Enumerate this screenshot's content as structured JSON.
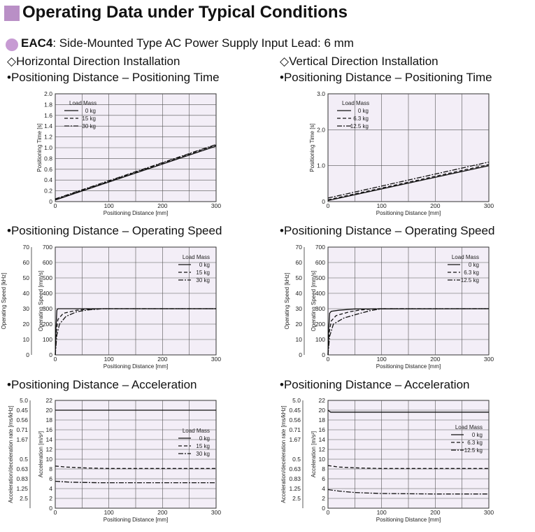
{
  "header": {
    "title": "Operating Data under Typical Conditions",
    "model": "EAC4",
    "subtitle": ": Side-Mounted Type  AC Power Supply Input  Lead: 6 mm"
  },
  "installations": {
    "left": "◇Horizontal Direction Installation",
    "right": "◇Vertical Direction Installation"
  },
  "colors": {
    "header_square": "#b98fc6",
    "bullet": "#c79bd3",
    "plot_bg": "#f3eef7"
  },
  "chart_data": [
    {
      "type": "line",
      "title": "•Positioning Distance – Positioning Time",
      "xlabel": "Positioning Distance [mm]",
      "ylabel": "Positioning Time [s]",
      "xlim": [
        0,
        300
      ],
      "ylim": [
        0,
        2.0
      ],
      "xticks": [
        0,
        100,
        200,
        300
      ],
      "yticks": [
        0,
        0.2,
        0.4,
        0.6,
        0.8,
        1.0,
        1.2,
        1.4,
        1.6,
        1.8,
        2.0
      ],
      "yticklabels": [
        "0",
        "0.2",
        "0.4",
        "0.6",
        "0.8",
        "1.0",
        "1.2",
        "1.4",
        "1.6",
        "1.8",
        "2.0"
      ],
      "grid": true,
      "legend": {
        "title": "Load Mass",
        "position": "top-left"
      },
      "series": [
        {
          "name": "0 kg",
          "style": "solid",
          "x": [
            0,
            300
          ],
          "y": [
            0.03,
            1.03
          ]
        },
        {
          "name": "15 kg",
          "style": "dash",
          "x": [
            0,
            300
          ],
          "y": [
            0.04,
            1.05
          ]
        },
        {
          "name": "30 kg",
          "style": "dashdot",
          "x": [
            0,
            300
          ],
          "y": [
            0.05,
            1.06
          ]
        }
      ]
    },
    {
      "type": "line",
      "title": "•Positioning Distance – Positioning Time",
      "xlabel": "Positioning Distance [mm]",
      "ylabel": "Positioning Time [s]",
      "xlim": [
        0,
        300
      ],
      "ylim": [
        0,
        3.0
      ],
      "xticks": [
        0,
        100,
        200,
        300
      ],
      "yticks": [
        0,
        1.0,
        2.0,
        3.0
      ],
      "yticklabels": [
        "0",
        "1.0",
        "2.0",
        "3.0"
      ],
      "grid": true,
      "legend": {
        "title": "Load Mass",
        "position": "top-left"
      },
      "series": [
        {
          "name": "0 kg",
          "style": "solid",
          "x": [
            0,
            300
          ],
          "y": [
            0.03,
            1.0
          ]
        },
        {
          "name": "6.3 kg",
          "style": "dash",
          "x": [
            0,
            300
          ],
          "y": [
            0.05,
            1.03
          ]
        },
        {
          "name": "12.5 kg",
          "style": "dashdot",
          "x": [
            0,
            300
          ],
          "y": [
            0.1,
            1.1
          ]
        }
      ]
    },
    {
      "type": "line",
      "title": "•Positioning Distance – Operating Speed",
      "xlabel": "Positioning Distance [mm]",
      "ylabel": "Operating Speed [mm/s]",
      "ylabel2": "Operating Speed [kHz]",
      "xlim": [
        0,
        300
      ],
      "ylim": [
        0,
        700
      ],
      "xticks": [
        0,
        100,
        200,
        300
      ],
      "yticks": [
        0,
        100,
        200,
        300,
        400,
        500,
        600,
        700
      ],
      "yticklabels": [
        "0",
        "100",
        "200",
        "300",
        "400",
        "500",
        "600",
        "700"
      ],
      "y2ticklabels": [
        "0",
        "10",
        "20",
        "30",
        "40",
        "50",
        "60",
        "70"
      ],
      "grid": true,
      "legend": {
        "title": "Load Mass",
        "position": "top-right"
      },
      "series": [
        {
          "name": "0 kg",
          "style": "solid",
          "x": [
            0,
            1,
            3,
            5,
            300
          ],
          "y": [
            0,
            150,
            290,
            300,
            300
          ]
        },
        {
          "name": "15 kg",
          "style": "dash",
          "x": [
            0,
            2,
            5,
            15,
            40,
            60,
            90,
            300
          ],
          "y": [
            0,
            150,
            230,
            270,
            290,
            296,
            300,
            300
          ]
        },
        {
          "name": "30 kg",
          "style": "dashdot",
          "x": [
            0,
            3,
            8,
            20,
            40,
            60,
            90,
            300
          ],
          "y": [
            0,
            130,
            200,
            250,
            280,
            292,
            300,
            300
          ]
        }
      ]
    },
    {
      "type": "line",
      "title": "•Positioning Distance – Operating Speed",
      "xlabel": "Positioning Distance [mm]",
      "ylabel": "Operating Speed [mm/s]",
      "ylabel2": "Operating Speed [kHz]",
      "xlim": [
        0,
        300
      ],
      "ylim": [
        0,
        700
      ],
      "xticks": [
        0,
        100,
        200,
        300
      ],
      "yticks": [
        0,
        100,
        200,
        300,
        400,
        500,
        600,
        700
      ],
      "yticklabels": [
        "0",
        "100",
        "200",
        "300",
        "400",
        "500",
        "600",
        "700"
      ],
      "y2ticklabels": [
        "0",
        "10",
        "20",
        "30",
        "40",
        "50",
        "60",
        "70"
      ],
      "grid": true,
      "legend": {
        "title": "Load Mass",
        "position": "top-right"
      },
      "series": [
        {
          "name": "0 kg",
          "style": "solid",
          "x": [
            0,
            1,
            3,
            6,
            20,
            50,
            300
          ],
          "y": [
            0,
            150,
            270,
            283,
            290,
            298,
            300
          ]
        },
        {
          "name": "6.3 kg",
          "style": "dash",
          "x": [
            0,
            2,
            6,
            15,
            40,
            60,
            90,
            300
          ],
          "y": [
            0,
            140,
            220,
            255,
            280,
            292,
            300,
            300
          ]
        },
        {
          "name": "12.5 kg",
          "style": "dashdot",
          "x": [
            0,
            3,
            10,
            30,
            60,
            80,
            100,
            300
          ],
          "y": [
            0,
            120,
            200,
            240,
            270,
            288,
            300,
            300
          ]
        }
      ]
    },
    {
      "type": "line",
      "title": "•Positioning Distance – Acceleration",
      "xlabel": "Positioning Distance [mm]",
      "ylabel": "Acceleration [m/s²]",
      "ylabel2": "Acceleration/deceleration rate [ms/kHz]",
      "xlim": [
        0,
        300
      ],
      "ylim": [
        0,
        22
      ],
      "xticks": [
        0,
        100,
        200,
        300
      ],
      "yticks": [
        0,
        2,
        4,
        6,
        8,
        10,
        12,
        14,
        16,
        18,
        20,
        22
      ],
      "yticklabels": [
        "0",
        "2",
        "4",
        "6",
        "8",
        "10",
        "12",
        "14",
        "16",
        "18",
        "20",
        "22"
      ],
      "y2ticklabels": [
        "",
        "2.5",
        "1.25",
        "0.83",
        "0.63",
        "0.5",
        "",
        "1.67",
        "0.71",
        "0.56",
        "0.45",
        "5.0"
      ],
      "grid": true,
      "legend": {
        "title": "Load Mass",
        "position": "right"
      },
      "series": [
        {
          "name": "0 kg",
          "style": "solid",
          "x": [
            0,
            300
          ],
          "y": [
            20,
            20
          ]
        },
        {
          "name": "15 kg",
          "style": "dash",
          "x": [
            0,
            20,
            60,
            100,
            300
          ],
          "y": [
            8.6,
            8.4,
            8.2,
            8.1,
            8.1
          ]
        },
        {
          "name": "30 kg",
          "style": "dashdot",
          "x": [
            0,
            30,
            80,
            300
          ],
          "y": [
            5.5,
            5.3,
            5.2,
            5.2
          ]
        }
      ]
    },
    {
      "type": "line",
      "title": "•Positioning Distance – Acceleration",
      "xlabel": "Positioning Distance [mm]",
      "ylabel": "Acceleration [m/s²]",
      "ylabel2": "Acceleration/deceleration rate [ms/kHz]",
      "xlim": [
        0,
        300
      ],
      "ylim": [
        0,
        22
      ],
      "xticks": [
        0,
        100,
        200,
        300
      ],
      "yticks": [
        0,
        2,
        4,
        6,
        8,
        10,
        12,
        14,
        16,
        18,
        20,
        22
      ],
      "yticklabels": [
        "0",
        "2",
        "4",
        "6",
        "8",
        "10",
        "12",
        "14",
        "16",
        "18",
        "20",
        "22"
      ],
      "y2ticklabels": [
        "",
        "2.5",
        "1.25",
        "0.83",
        "0.63",
        "0.5",
        "",
        "1.67",
        "0.71",
        "0.56",
        "0.45",
        "5.0"
      ],
      "grid": true,
      "legend": {
        "title": "Load Mass",
        "position": "right"
      },
      "series": [
        {
          "name": "0 kg",
          "style": "solid",
          "x": [
            0,
            5,
            300
          ],
          "y": [
            20,
            19.6,
            19.6
          ]
        },
        {
          "name": "6.3 kg",
          "style": "dash",
          "x": [
            0,
            20,
            60,
            100,
            300
          ],
          "y": [
            8.7,
            8.4,
            8.2,
            8.1,
            8.1
          ]
        },
        {
          "name": "12.5 kg",
          "style": "dashdot",
          "x": [
            0,
            20,
            50,
            100,
            200,
            300
          ],
          "y": [
            3.8,
            3.5,
            3.2,
            3.0,
            2.9,
            2.9
          ]
        }
      ]
    }
  ]
}
